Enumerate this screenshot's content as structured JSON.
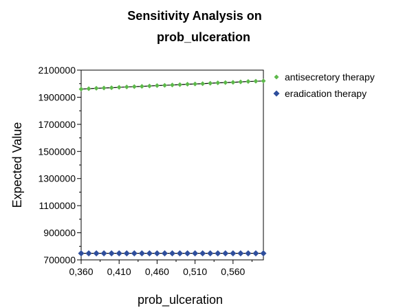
{
  "chart_data": {
    "type": "line",
    "title_lines": [
      "Sensitivity Analysis on",
      "prob_ulceration"
    ],
    "xlabel": "prob_ulceration",
    "ylabel": "Expected Value",
    "xlim": [
      0.36,
      0.6
    ],
    "ylim": [
      700000,
      2100000
    ],
    "x_ticks": [
      "0,360",
      "0,410",
      "0,460",
      "0,510",
      "0,560"
    ],
    "x_tick_values": [
      0.36,
      0.41,
      0.46,
      0.51,
      0.56
    ],
    "y_ticks": [
      "2100000",
      "1900000",
      "1700000",
      "1500000",
      "1300000",
      "1100000",
      "900000",
      "700000"
    ],
    "y_tick_values": [
      2100000,
      1900000,
      1700000,
      1500000,
      1300000,
      1100000,
      900000,
      700000
    ],
    "grid": false,
    "legend_position": "right",
    "x": [
      0.36,
      0.37,
      0.38,
      0.39,
      0.4,
      0.41,
      0.42,
      0.43,
      0.44,
      0.45,
      0.46,
      0.47,
      0.48,
      0.49,
      0.5,
      0.51,
      0.52,
      0.53,
      0.54,
      0.55,
      0.56,
      0.57,
      0.58,
      0.59,
      0.6
    ],
    "series": [
      {
        "name": "antisecretory therapy",
        "color": "#5cb84a",
        "marker": "diamond-small",
        "values": [
          1960000,
          1963000,
          1966000,
          1968000,
          1970000,
          1973000,
          1976000,
          1978000,
          1980000,
          1983000,
          1986000,
          1988000,
          1990000,
          1993000,
          1996000,
          1998000,
          2000000,
          2003000,
          2006000,
          2008000,
          2010000,
          2013000,
          2016000,
          2018000,
          2020000
        ]
      },
      {
        "name": "eradication therapy",
        "color": "#2e4e9c",
        "marker": "diamond-large",
        "values": [
          748000,
          748000,
          748000,
          748000,
          748000,
          748000,
          748000,
          748000,
          748000,
          748000,
          748000,
          748000,
          748000,
          748000,
          748000,
          748000,
          748000,
          748000,
          748000,
          748000,
          748000,
          748000,
          748000,
          748000,
          748000
        ]
      }
    ]
  }
}
